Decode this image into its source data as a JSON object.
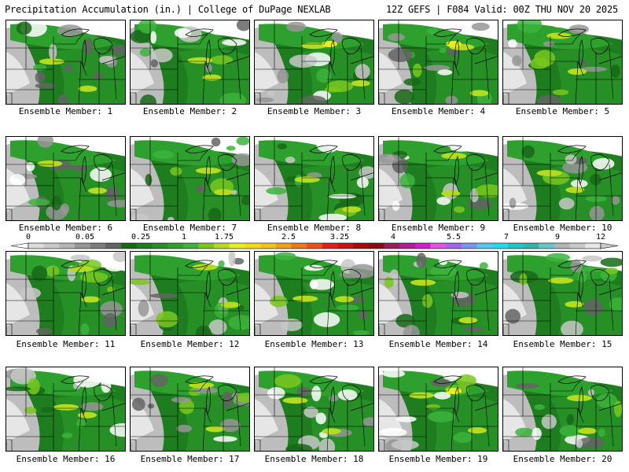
{
  "header": {
    "title_left": "Precipitation Accumulation (in.) | College of DuPage NEXLAB",
    "title_right": "12Z GEFS | F084 Valid: 00Z THU NOV 20 2025"
  },
  "panels": [
    {
      "label": "Ensemble Member: 1"
    },
    {
      "label": "Ensemble Member: 2"
    },
    {
      "label": "Ensemble Member: 3"
    },
    {
      "label": "Ensemble Member: 4"
    },
    {
      "label": "Ensemble Member: 5"
    },
    {
      "label": "Ensemble Member: 6"
    },
    {
      "label": "Ensemble Member: 7"
    },
    {
      "label": "Ensemble Member: 8"
    },
    {
      "label": "Ensemble Member: 9"
    },
    {
      "label": "Ensemble Member: 10"
    },
    {
      "label": "Ensemble Member: 11"
    },
    {
      "label": "Ensemble Member: 12"
    },
    {
      "label": "Ensemble Member: 13"
    },
    {
      "label": "Ensemble Member: 14"
    },
    {
      "label": "Ensemble Member: 15"
    },
    {
      "label": "Ensemble Member: 16"
    },
    {
      "label": "Ensemble Member: 17"
    },
    {
      "label": "Ensemble Member: 18"
    },
    {
      "label": "Ensemble Member: 19"
    },
    {
      "label": "Ensemble Member: 20"
    }
  ],
  "colorbar": {
    "labels": [
      "0",
      "0.05",
      "0.25",
      "1",
      "1.75",
      "2.5",
      "3.25",
      "4",
      "5.5",
      "7",
      "9",
      "12"
    ],
    "colors": [
      "#dcdcdc",
      "#c8c8c8",
      "#b4b4b4",
      "#969696",
      "#7d7d7d",
      "#646464",
      "#176817",
      "#1e7d1e",
      "#268f26",
      "#2ea02e",
      "#3cb43c",
      "#78c81e",
      "#b4dc1e",
      "#e6f01e",
      "#f0dc14",
      "#f0c814",
      "#f0a014",
      "#f07814",
      "#f05014",
      "#e61e1e",
      "#c81414",
      "#aa0a0a",
      "#8c0a14",
      "#9b1e5a",
      "#b41e96",
      "#d21ed2",
      "#e650e6",
      "#a064f0",
      "#7896f0",
      "#50c8f0",
      "#1edcf0",
      "#1ec8c8",
      "#32b4aa",
      "#64c8c8",
      "#b4b4b4",
      "#c8c8c8",
      "#e6e6e6"
    ]
  }
}
